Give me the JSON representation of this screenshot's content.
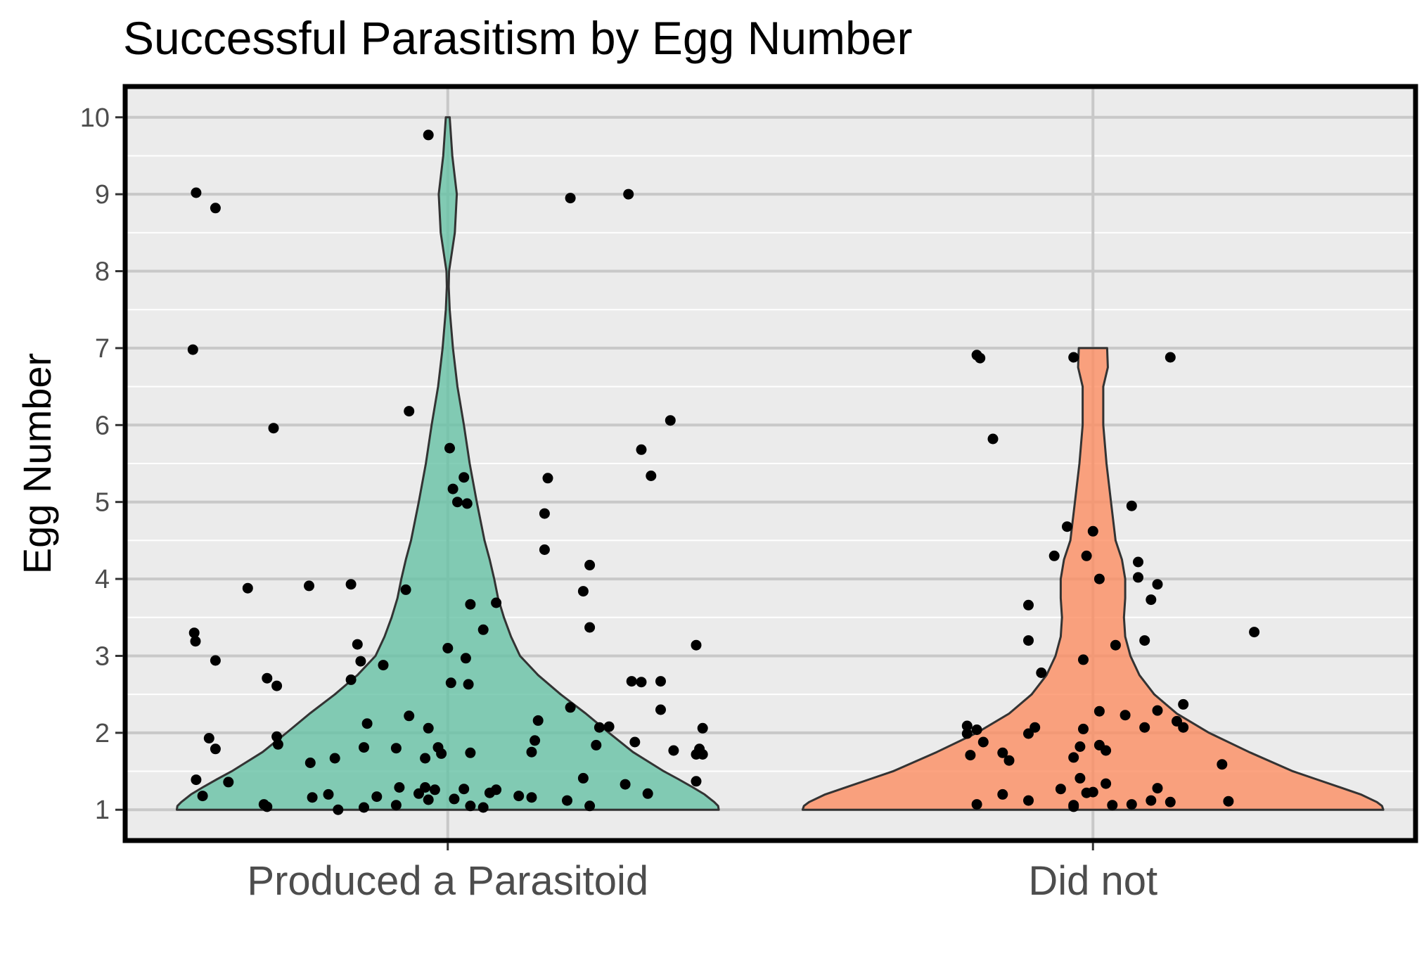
{
  "chart_data": {
    "type": "violin",
    "title": "Successful Parasitism by Egg Number",
    "xlabel": "",
    "ylabel": "Egg Number",
    "categories": [
      "Produced a Parasitoid",
      "Did not"
    ],
    "yticks": [
      "1",
      "2",
      "3",
      "4",
      "5",
      "6",
      "7",
      "8",
      "9",
      "10"
    ],
    "ylim": [
      0.6,
      10.4
    ],
    "grid": true,
    "legend": "none",
    "fill_colors": [
      "#66c2a5",
      "#fc8d62"
    ],
    "panel_color": "#ebebeb",
    "violins": [
      {
        "category": "Produced a Parasitoid",
        "profile": [
          [
            1.0,
            0.42
          ],
          [
            1.05,
            0.419
          ],
          [
            1.1,
            0.413
          ],
          [
            1.2,
            0.398
          ],
          [
            1.3,
            0.378
          ],
          [
            1.4,
            0.357
          ],
          [
            1.5,
            0.335
          ],
          [
            1.75,
            0.287
          ],
          [
            2.0,
            0.25
          ],
          [
            2.25,
            0.214
          ],
          [
            2.5,
            0.175
          ],
          [
            2.75,
            0.14
          ],
          [
            3.0,
            0.112
          ],
          [
            3.25,
            0.098
          ],
          [
            3.5,
            0.087
          ],
          [
            3.75,
            0.078
          ],
          [
            4.0,
            0.072
          ],
          [
            4.25,
            0.065
          ],
          [
            4.5,
            0.057
          ],
          [
            5.0,
            0.045
          ],
          [
            5.5,
            0.034
          ],
          [
            6.0,
            0.025
          ],
          [
            6.5,
            0.015
          ],
          [
            7.0,
            0.008
          ],
          [
            7.5,
            0.003
          ],
          [
            7.8,
            0.0015
          ],
          [
            8.0,
            0.002
          ],
          [
            8.5,
            0.011
          ],
          [
            9.0,
            0.014
          ],
          [
            9.5,
            0.007
          ],
          [
            10.0,
            0.003
          ]
        ],
        "points": [
          [
            -0.39,
            9.02
          ],
          [
            -0.36,
            8.82
          ],
          [
            -0.395,
            6.98
          ],
          [
            -0.27,
            5.96
          ],
          [
            -0.31,
            3.88
          ],
          [
            -0.215,
            3.91
          ],
          [
            -0.393,
            3.3
          ],
          [
            -0.391,
            3.19
          ],
          [
            -0.36,
            2.94
          ],
          [
            -0.28,
            2.71
          ],
          [
            -0.265,
            2.61
          ],
          [
            -0.37,
            1.93
          ],
          [
            -0.36,
            1.79
          ],
          [
            -0.265,
            1.95
          ],
          [
            -0.263,
            1.85
          ],
          [
            -0.213,
            1.61
          ],
          [
            -0.175,
            1.67
          ],
          [
            -0.34,
            1.36
          ],
          [
            -0.39,
            1.39
          ],
          [
            -0.38,
            1.18
          ],
          [
            -0.285,
            1.07
          ],
          [
            -0.28,
            1.04
          ],
          [
            -0.21,
            1.16
          ],
          [
            -0.185,
            1.2
          ],
          [
            -0.17,
            1.0
          ],
          [
            -0.13,
            1.03
          ],
          [
            -0.11,
            1.17
          ],
          [
            -0.08,
            1.06
          ],
          [
            -0.075,
            1.29
          ],
          [
            -0.045,
            1.21
          ],
          [
            -0.035,
            1.29
          ],
          [
            -0.03,
            1.13
          ],
          [
            -0.02,
            1.26
          ],
          [
            0.01,
            1.14
          ],
          [
            0.025,
            1.27
          ],
          [
            0.035,
            1.05
          ],
          [
            0.055,
            1.03
          ],
          [
            0.065,
            1.22
          ],
          [
            0.075,
            1.26
          ],
          [
            0.11,
            1.18
          ],
          [
            0.13,
            1.16
          ],
          [
            0.185,
            1.12
          ],
          [
            -0.03,
            9.77
          ],
          [
            0.19,
            8.95
          ],
          [
            0.28,
            9.0
          ],
          [
            -0.06,
            6.18
          ],
          [
            0.003,
            5.7
          ],
          [
            0.008,
            5.17
          ],
          [
            0.015,
            5.0
          ],
          [
            0.025,
            5.32
          ],
          [
            0.03,
            4.98
          ],
          [
            0.15,
            4.38
          ],
          [
            0.15,
            4.85
          ],
          [
            0.155,
            5.31
          ],
          [
            0.22,
            4.18
          ],
          [
            0.21,
            3.84
          ],
          [
            0.22,
            3.37
          ],
          [
            -0.065,
            3.86
          ],
          [
            0.035,
            3.67
          ],
          [
            0.055,
            3.34
          ],
          [
            0.075,
            3.69
          ],
          [
            -0.15,
            3.93
          ],
          [
            -0.14,
            3.15
          ],
          [
            -0.135,
            2.93
          ],
          [
            -0.1,
            2.88
          ],
          [
            -0.15,
            2.69
          ],
          [
            0.0,
            3.1
          ],
          [
            0.005,
            2.65
          ],
          [
            0.028,
            2.97
          ],
          [
            0.032,
            2.63
          ],
          [
            -0.125,
            2.12
          ],
          [
            -0.06,
            2.22
          ],
          [
            -0.03,
            2.06
          ],
          [
            -0.08,
            1.8
          ],
          [
            -0.13,
            1.81
          ],
          [
            -0.035,
            1.67
          ],
          [
            -0.015,
            1.81
          ],
          [
            -0.01,
            1.73
          ],
          [
            0.035,
            1.74
          ],
          [
            0.13,
            1.75
          ],
          [
            0.135,
            1.9
          ],
          [
            0.14,
            2.16
          ],
          [
            0.19,
            2.33
          ],
          [
            0.23,
            1.84
          ],
          [
            0.235,
            2.07
          ],
          [
            0.25,
            2.08
          ],
          [
            0.21,
            1.41
          ],
          [
            0.275,
            1.33
          ],
          [
            0.285,
            2.67
          ],
          [
            0.3,
            2.66
          ],
          [
            0.33,
            2.67
          ],
          [
            0.33,
            2.3
          ],
          [
            0.29,
            1.88
          ],
          [
            0.35,
            1.77
          ],
          [
            0.31,
            1.21
          ],
          [
            0.22,
            1.05
          ],
          [
            0.345,
            6.06
          ],
          [
            0.3,
            5.68
          ],
          [
            0.315,
            5.34
          ],
          [
            0.385,
            3.14
          ],
          [
            0.39,
            1.79
          ],
          [
            0.385,
            1.72
          ],
          [
            0.395,
            1.72
          ],
          [
            0.395,
            2.06
          ],
          [
            0.385,
            1.37
          ]
        ]
      },
      {
        "category": "Did not",
        "profile": [
          [
            1.0,
            0.45
          ],
          [
            1.05,
            0.448
          ],
          [
            1.1,
            0.44
          ],
          [
            1.2,
            0.415
          ],
          [
            1.3,
            0.38
          ],
          [
            1.4,
            0.345
          ],
          [
            1.5,
            0.31
          ],
          [
            1.75,
            0.242
          ],
          [
            2.0,
            0.18
          ],
          [
            2.25,
            0.13
          ],
          [
            2.5,
            0.095
          ],
          [
            2.75,
            0.072
          ],
          [
            3.0,
            0.058
          ],
          [
            3.25,
            0.05
          ],
          [
            3.5,
            0.048
          ],
          [
            3.75,
            0.05
          ],
          [
            4.0,
            0.05
          ],
          [
            4.25,
            0.045
          ],
          [
            4.5,
            0.035
          ],
          [
            5.0,
            0.028
          ],
          [
            5.5,
            0.021
          ],
          [
            6.0,
            0.016
          ],
          [
            6.5,
            0.016
          ],
          [
            6.75,
            0.023
          ],
          [
            7.0,
            0.022
          ]
        ],
        "points": [
          [
            -0.18,
            6.91
          ],
          [
            -0.175,
            6.87
          ],
          [
            -0.155,
            5.82
          ],
          [
            -0.195,
            2.09
          ],
          [
            -0.195,
            1.99
          ],
          [
            -0.18,
            2.04
          ],
          [
            -0.19,
            1.71
          ],
          [
            -0.17,
            1.88
          ],
          [
            -0.14,
            1.74
          ],
          [
            -0.13,
            1.64
          ],
          [
            -0.1,
            1.99
          ],
          [
            -0.09,
            2.07
          ],
          [
            -0.14,
            1.2
          ],
          [
            -0.1,
            1.12
          ],
          [
            -0.18,
            1.07
          ],
          [
            -0.1,
            3.66
          ],
          [
            -0.1,
            3.2
          ],
          [
            -0.08,
            2.78
          ],
          [
            -0.06,
            4.3
          ],
          [
            -0.04,
            4.68
          ],
          [
            -0.03,
            1.68
          ],
          [
            -0.02,
            1.82
          ],
          [
            -0.05,
            1.27
          ],
          [
            -0.03,
            1.04
          ],
          [
            -0.02,
            1.41
          ],
          [
            -0.01,
            1.22
          ],
          [
            -0.03,
            1.06
          ],
          [
            -0.03,
            6.88
          ],
          [
            -0.015,
            2.95
          ],
          [
            -0.015,
            2.05
          ],
          [
            -0.01,
            4.3
          ],
          [
            0.0,
            4.62
          ],
          [
            0.01,
            4.0
          ],
          [
            0.01,
            2.28
          ],
          [
            0.01,
            1.84
          ],
          [
            0.02,
            1.77
          ],
          [
            0.02,
            1.34
          ],
          [
            0.0,
            1.23
          ],
          [
            0.03,
            1.06
          ],
          [
            0.035,
            3.14
          ],
          [
            0.05,
            2.23
          ],
          [
            0.06,
            1.07
          ],
          [
            0.06,
            4.95
          ],
          [
            0.07,
            4.22
          ],
          [
            0.07,
            4.02
          ],
          [
            0.08,
            3.2
          ],
          [
            0.08,
            2.07
          ],
          [
            0.09,
            3.73
          ],
          [
            0.1,
            3.93
          ],
          [
            0.1,
            2.29
          ],
          [
            0.1,
            1.28
          ],
          [
            0.09,
            1.12
          ],
          [
            0.12,
            6.88
          ],
          [
            0.14,
            2.37
          ],
          [
            0.14,
            2.07
          ],
          [
            0.13,
            2.15
          ],
          [
            0.12,
            1.1
          ],
          [
            0.2,
            1.59
          ],
          [
            0.21,
            1.11
          ],
          [
            0.25,
            3.31
          ]
        ]
      }
    ]
  }
}
